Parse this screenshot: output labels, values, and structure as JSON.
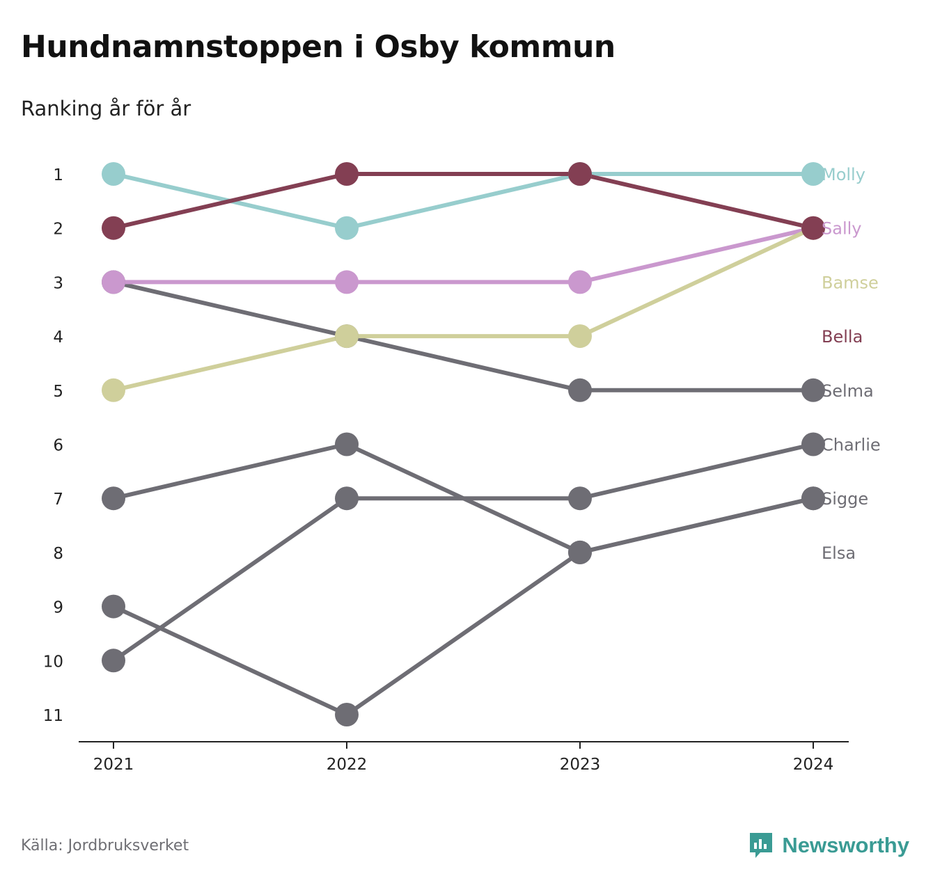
{
  "title": "Hundnamnstoppen i Osby kommun",
  "subtitle": "Ranking år för år",
  "source": "Källa: Jordbruksverket",
  "brand": {
    "name": "Newsworthy",
    "icon": "newsworthy-logo-icon",
    "color": "#3a9b94"
  },
  "chart_data": {
    "type": "line",
    "x": [
      "2021",
      "2022",
      "2023",
      "2024"
    ],
    "y_ticks": [
      1,
      2,
      3,
      4,
      5,
      6,
      7,
      8,
      9,
      10,
      11
    ],
    "ylim": [
      1,
      11
    ],
    "y_inverted": true,
    "grid": false,
    "legend": "direct labels at right",
    "series": [
      {
        "name": "Molly",
        "color": "#97cdcd",
        "values": [
          1,
          2,
          1,
          1
        ]
      },
      {
        "name": "Sally",
        "color": "#ca98ce",
        "values": [
          3,
          3,
          3,
          2
        ]
      },
      {
        "name": "Bamse",
        "color": "#cfcf9b",
        "values": [
          5,
          4,
          4,
          2
        ]
      },
      {
        "name": "Bella",
        "color": "#833f53",
        "values": [
          2,
          1,
          1,
          2
        ]
      },
      {
        "name": "Selma",
        "color": "#6e6d74",
        "values": [
          3,
          4,
          5,
          5
        ]
      },
      {
        "name": "Charlie",
        "color": "#6e6d74",
        "values": [
          10,
          7,
          7,
          6
        ]
      },
      {
        "name": "Sigge",
        "color": "#6e6d74",
        "values": [
          7,
          6,
          8,
          7
        ]
      },
      {
        "name": "Elsa",
        "color": "#6e6d74",
        "values": [
          9,
          11,
          8,
          7
        ]
      }
    ]
  }
}
